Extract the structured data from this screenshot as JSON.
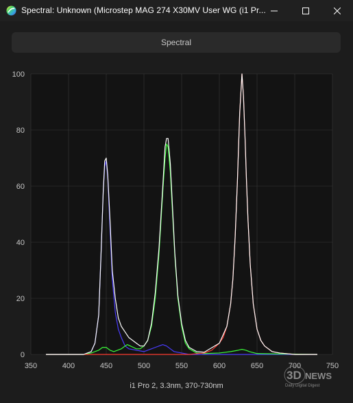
{
  "window": {
    "title": "Spectral: Unknown (Microstep MAG 274 X30MV User WG (i1 Pr...",
    "minimize_label": "",
    "maximize_label": "",
    "close_label": ""
  },
  "tab": {
    "label": "Spectral"
  },
  "watermark": {
    "line1": "3D",
    "line2": "NEWS",
    "line3": "Daily Digital Digest"
  },
  "colors": {
    "background": "#1c1c1c",
    "plot_bg": "#131313",
    "grid": "#3a3a3a",
    "red": "#ff3b30",
    "green": "#3cff3c",
    "blue": "#4a3cff",
    "white": "#ffffff"
  },
  "chart_data": {
    "type": "line",
    "title": "",
    "xlabel": "i1 Pro 2, 3.3nm, 370-730nm",
    "ylabel": "",
    "xlim": [
      350,
      750
    ],
    "ylim": [
      0,
      100
    ],
    "xticks": [
      350,
      400,
      450,
      500,
      550,
      600,
      650,
      700,
      750
    ],
    "yticks": [
      0,
      20,
      40,
      60,
      80,
      100
    ],
    "grid": true,
    "series": [
      {
        "color": "#4a3cff",
        "x": [
          370,
          420,
          430,
          435,
          440,
          443,
          446,
          448,
          450,
          452,
          455,
          458,
          462,
          466,
          470,
          475,
          480,
          490,
          500,
          505,
          510,
          515,
          520,
          525,
          530,
          535,
          540,
          550,
          560,
          580,
          730
        ],
        "y": [
          0,
          0,
          1,
          4,
          14,
          35,
          58,
          67,
          69,
          63,
          45,
          27,
          15,
          9,
          6,
          3,
          2,
          1.5,
          1,
          1.5,
          2,
          2.5,
          3,
          3.5,
          3,
          2,
          1,
          0.5,
          0,
          0,
          0
        ]
      },
      {
        "color": "#3cff3c",
        "x": [
          370,
          380,
          420,
          430,
          440,
          445,
          450,
          455,
          460,
          470,
          475,
          478,
          482,
          486,
          490,
          495,
          500,
          505,
          510,
          515,
          520,
          525,
          528,
          530,
          532,
          535,
          538,
          541,
          545,
          550,
          555,
          560,
          570,
          580,
          600,
          615,
          625,
          630,
          635,
          640,
          650,
          730
        ],
        "y": [
          0,
          0,
          0,
          0.5,
          1.5,
          2.5,
          2.5,
          1.5,
          1,
          2,
          3,
          3.5,
          3,
          2.5,
          2,
          2,
          3,
          5,
          10,
          20,
          36,
          58,
          70,
          75,
          74,
          65,
          50,
          35,
          20,
          10,
          4,
          2,
          0.5,
          0.3,
          0.5,
          1,
          1.5,
          1.8,
          1.5,
          1,
          0.3,
          0
        ]
      },
      {
        "color": "#ff3b30",
        "x": [
          370,
          560,
          580,
          590,
          600,
          605,
          610,
          615,
          618,
          621,
          624,
          627,
          630,
          632,
          634,
          636,
          638,
          641,
          645,
          650,
          655,
          660,
          670,
          680,
          700,
          730
        ],
        "y": [
          0,
          0,
          0.5,
          1.5,
          4,
          6,
          10,
          18,
          27,
          42,
          62,
          86,
          100,
          92,
          78,
          62,
          48,
          32,
          18,
          9,
          5,
          3,
          1,
          0.5,
          0,
          0
        ]
      },
      {
        "color": "#ffffff",
        "x": [
          370,
          420,
          430,
          435,
          440,
          443,
          446,
          448,
          450,
          452,
          455,
          458,
          462,
          466,
          470,
          475,
          480,
          485,
          490,
          495,
          500,
          505,
          510,
          515,
          520,
          525,
          528,
          530,
          532,
          535,
          538,
          541,
          545,
          550,
          555,
          560,
          570,
          580,
          600,
          610,
          615,
          618,
          621,
          624,
          627,
          630,
          632,
          634,
          636,
          638,
          641,
          645,
          650,
          655,
          660,
          670,
          680,
          700,
          730
        ],
        "y": [
          0,
          0,
          1,
          4,
          14,
          35,
          58,
          69,
          70,
          64,
          48,
          30,
          20,
          13,
          10,
          8,
          6,
          5,
          4,
          3,
          3,
          5,
          11,
          22,
          38,
          60,
          74,
          77,
          77,
          68,
          52,
          36,
          21,
          11,
          5,
          2.5,
          1,
          0.8,
          4,
          10,
          18,
          27,
          42,
          62,
          86,
          100,
          92,
          78,
          62,
          48,
          32,
          18,
          9,
          5,
          3,
          1,
          0.5,
          0,
          0
        ]
      }
    ]
  }
}
